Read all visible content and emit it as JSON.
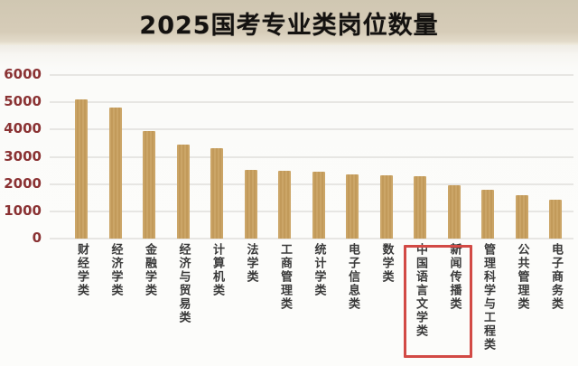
{
  "header": {
    "title": "2025国考专业类岗位数量"
  },
  "chart_data": {
    "type": "bar",
    "title": "2025国考专业类岗位数量",
    "categories": [
      "财经学类",
      "经济学类",
      "金融学类",
      "经济与贸易类",
      "计算机类",
      "法学类",
      "工商管理类",
      "统计学类",
      "电子信息类",
      "数学类",
      "中国语言文学类",
      "新闻传播类",
      "管理科学与工程类",
      "公共管理类",
      "电子商务类"
    ],
    "values": [
      5100,
      4800,
      3950,
      3450,
      3300,
      2520,
      2500,
      2450,
      2350,
      2320,
      2300,
      1950,
      1800,
      1580,
      1430
    ],
    "xlabel": "",
    "ylabel": "",
    "ylim": [
      0,
      6000
    ],
    "yticks": [
      0,
      1000,
      2000,
      3000,
      4000,
      5000,
      6000
    ],
    "grid": true,
    "legend": "none",
    "bar_color": "#c9a264",
    "axis_label_color": "#8a3233",
    "category_label_color": "#3a3a3a",
    "highlight": {
      "categories": [
        "中国语言文学类",
        "新闻传播类"
      ],
      "box_color": "#d24a45"
    }
  },
  "colors": {
    "header_background": "#d6ccb8",
    "chart_background": "#fbfbf9",
    "gridline": "#e7e6e3",
    "title_text": "#141210"
  }
}
